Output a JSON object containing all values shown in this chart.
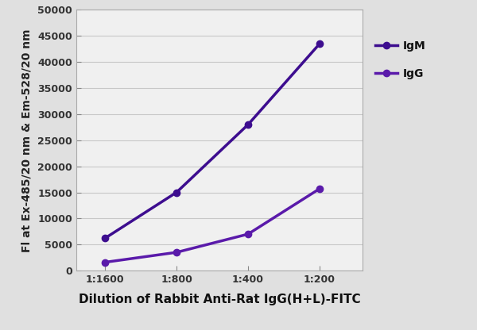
{
  "x_labels": [
    "1:1600",
    "1:800",
    "1:400",
    "1:200"
  ],
  "x_positions": [
    0,
    1,
    2,
    3
  ],
  "IgM_values": [
    6200,
    15000,
    28000,
    43500
  ],
  "IgG_values": [
    1600,
    3500,
    7000,
    15700
  ],
  "IgM_color": "#3d0d8f",
  "IgG_color": "#5a1aaa",
  "marker": "o",
  "marker_size": 6,
  "linewidth": 2.5,
  "ylim": [
    0,
    50000
  ],
  "yticks": [
    0,
    5000,
    10000,
    15000,
    20000,
    25000,
    30000,
    35000,
    40000,
    45000,
    50000
  ],
  "ylabel": "Fl at Ex-485/20 nm & Em-528/20 nm",
  "xlabel": "Dilution of Rabbit Anti-Rat IgG(H+L)-FITC",
  "legend_labels": [
    "IgM",
    "IgG"
  ],
  "fig_bg_color": "#e0e0e0",
  "plot_bg_color": "#f0f0f0",
  "grid_color": "#c8c8c8",
  "axis_label_fontsize": 10,
  "tick_fontsize": 9,
  "legend_fontsize": 10,
  "xlim": [
    -0.4,
    3.6
  ]
}
